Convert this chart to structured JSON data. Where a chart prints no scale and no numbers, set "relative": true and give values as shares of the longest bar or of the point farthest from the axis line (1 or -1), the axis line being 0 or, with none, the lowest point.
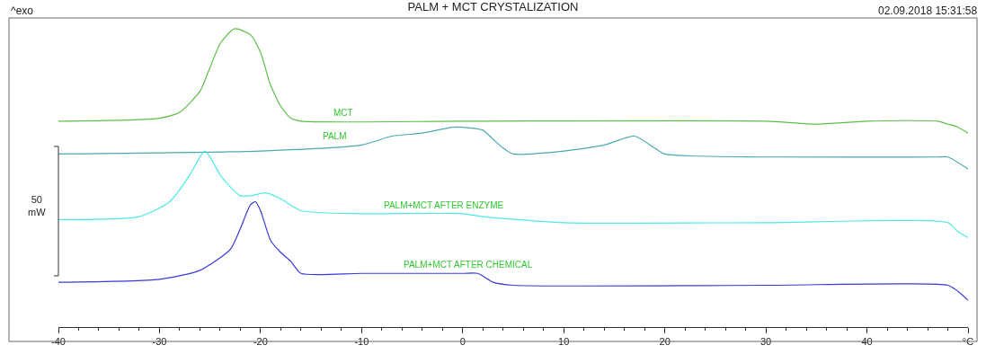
{
  "chart_data": {
    "type": "line",
    "title": "PALM + MCT CRYSTALIZATION",
    "relative": true,
    "legend": false,
    "marker": "none",
    "line_style": "solid",
    "annotations": [
      "^exo",
      "02.09.2018 15:31:58",
      "50\nmW"
    ],
    "xlim": [
      -40,
      50
    ],
    "xticks": [
      -40,
      -30,
      -20,
      -10,
      0,
      10,
      20,
      30,
      40,
      {
        "value": 50,
        "label": "°C"
      }
    ],
    "series": [
      {
        "name": "MCT",
        "color": "#5cbf4a",
        "x": [
          -40,
          -30,
          -28,
          -26,
          -25,
          -24,
          -23,
          -22.5,
          -21,
          -20,
          -19,
          -18,
          -17,
          -16,
          0,
          30,
          35,
          40,
          47,
          48,
          49,
          50
        ],
        "values": [
          0.69,
          0.7,
          0.72,
          0.79,
          0.87,
          0.95,
          0.99,
          1.0,
          0.98,
          0.92,
          0.81,
          0.74,
          0.7,
          0.69,
          0.69,
          0.69,
          0.68,
          0.69,
          0.69,
          0.68,
          0.67,
          0.65
        ]
      },
      {
        "name": "PALM",
        "color": "#4aaab0",
        "x": [
          -40,
          -20,
          -10,
          -7,
          -4,
          -1,
          0,
          2,
          3,
          4,
          5,
          10,
          14,
          17,
          19,
          20,
          30,
          47,
          48,
          50
        ],
        "values": [
          0.58,
          0.59,
          0.61,
          0.64,
          0.65,
          0.67,
          0.67,
          0.66,
          0.63,
          0.6,
          0.58,
          0.59,
          0.61,
          0.64,
          0.6,
          0.58,
          0.57,
          0.57,
          0.57,
          0.53
        ]
      },
      {
        "name": "PALM+MCT AFTER ENZYME",
        "color": "#4de8e8",
        "x": [
          -40,
          -32,
          -29,
          -27,
          -26,
          -25.5,
          -25,
          -24,
          -23,
          -22,
          -21,
          -19.5,
          -18,
          -16,
          -10,
          0,
          2,
          10,
          30,
          48,
          49,
          50
        ],
        "values": [
          0.36,
          0.37,
          0.42,
          0.51,
          0.57,
          0.59,
          0.57,
          0.51,
          0.47,
          0.44,
          0.44,
          0.45,
          0.43,
          0.39,
          0.38,
          0.38,
          0.37,
          0.35,
          0.35,
          0.35,
          0.32,
          0.3
        ]
      },
      {
        "name": "PALM+MCT AFTER CHEMICAL",
        "color": "#3a3ad8",
        "x": [
          -40,
          -30,
          -26,
          -23,
          -22,
          -21,
          -20.5,
          -20,
          -19,
          -18,
          -17,
          -16,
          -10,
          0,
          1.5,
          3,
          5,
          30,
          48,
          49,
          50
        ],
        "values": [
          0.15,
          0.16,
          0.19,
          0.26,
          0.33,
          0.41,
          0.42,
          0.39,
          0.29,
          0.25,
          0.22,
          0.18,
          0.18,
          0.18,
          0.18,
          0.15,
          0.14,
          0.14,
          0.14,
          0.12,
          0.09
        ]
      }
    ]
  }
}
